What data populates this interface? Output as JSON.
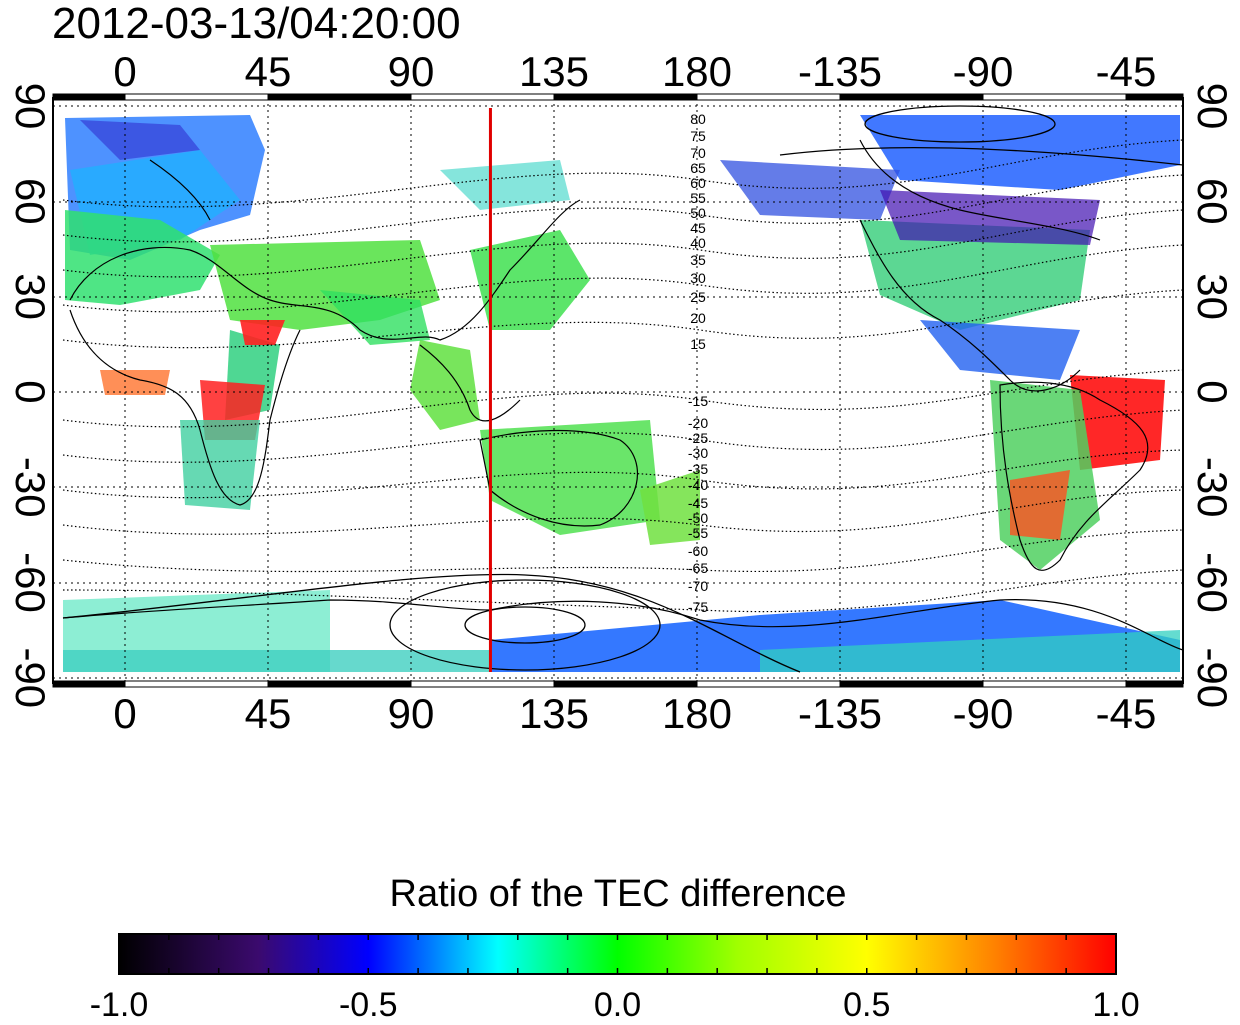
{
  "title": "2012-03-13/04:20:00",
  "map": {
    "lon_ticks": [
      "0",
      "45",
      "90",
      "135",
      "180",
      "-135",
      "-90",
      "-45"
    ],
    "lat_ticks": [
      "90",
      "60",
      "30",
      "0",
      "-30",
      "-60",
      "-90"
    ],
    "marker_longitude": 115,
    "marker_color": "#e00000",
    "north_contour_labels": [
      "80",
      "75",
      "70",
      "65",
      "60",
      "55",
      "50",
      "45",
      "40",
      "35",
      "30",
      "25",
      "20",
      "15"
    ],
    "south_contour_labels": [
      "-15",
      "-20",
      "-25",
      "-30",
      "-35",
      "-40",
      "-45",
      "-50",
      "-55",
      "-60",
      "-65",
      "-70",
      "-75"
    ]
  },
  "colorbar": {
    "title": "Ratio of the TEC difference",
    "min": -1.0,
    "max": 1.0,
    "tick_labels": [
      "-1.0",
      "-0.5",
      "0.0",
      "0.5",
      "1.0"
    ],
    "colors": [
      "#000000",
      "#3b0a6e",
      "#0000ff",
      "#00ffff",
      "#00ff00",
      "#ffff00",
      "#ff8000",
      "#ff0000"
    ]
  }
}
